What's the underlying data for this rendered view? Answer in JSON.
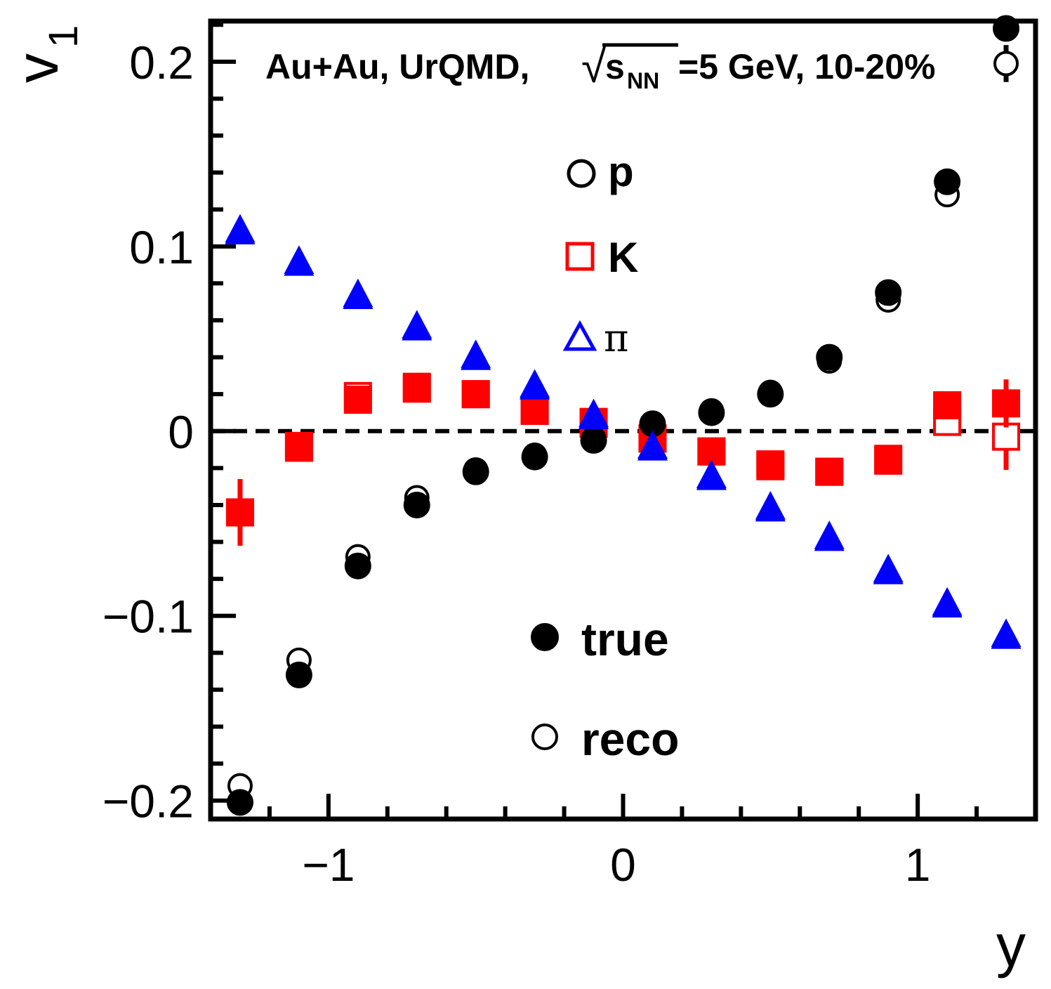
{
  "chart_data": {
    "type": "scatter",
    "annotation": {
      "prefix": "Au+Au, UrQMD, ",
      "sqrt_symbol": "√",
      "s_letter": "s",
      "subscript": "NN",
      "suffix": "=5 GeV, 10-20%"
    },
    "xlabel": "y",
    "ylabel": {
      "main": "v",
      "sub": "1"
    },
    "xlim": [
      -1.4,
      1.4
    ],
    "ylim": [
      -0.21,
      0.222
    ],
    "x_ticks": [
      {
        "value": -1,
        "label": "−1"
      },
      {
        "value": 0,
        "label": "0"
      },
      {
        "value": 1,
        "label": "1"
      }
    ],
    "y_ticks": [
      {
        "value": -0.2,
        "label": "−0.2"
      },
      {
        "value": -0.1,
        "label": "−0.1"
      },
      {
        "value": 0,
        "label": "0"
      },
      {
        "value": 0.1,
        "label": "0.1"
      },
      {
        "value": 0.2,
        "label": "0.2"
      }
    ],
    "zero_line": true,
    "legend_species": [
      {
        "label": "p",
        "marker": "circle",
        "color": "#000000"
      },
      {
        "label": "K",
        "marker": "square",
        "color": "#ff0000"
      },
      {
        "label": "π",
        "marker": "triangle",
        "color": "#0000ff"
      }
    ],
    "legend_type": [
      {
        "label": "true",
        "filled": true
      },
      {
        "label": "reco",
        "filled": false
      }
    ],
    "x": [
      -1.3,
      -1.1,
      -0.9,
      -0.7,
      -0.5,
      -0.3,
      -0.1,
      0.1,
      0.3,
      0.5,
      0.7,
      0.9,
      1.1,
      1.3
    ],
    "series": [
      {
        "name": "p true",
        "marker": "circle",
        "filled": true,
        "color": "#000000",
        "values": [
          -0.201,
          -0.132,
          -0.073,
          -0.04,
          -0.022,
          -0.014,
          -0.005,
          0.004,
          0.01,
          0.02,
          0.04,
          0.075,
          0.135,
          0.218
        ],
        "errors": [
          0,
          0,
          0,
          0,
          0,
          0,
          0,
          0,
          0,
          0,
          0,
          0,
          0,
          0
        ]
      },
      {
        "name": "p reco",
        "marker": "circle",
        "filled": false,
        "color": "#000000",
        "values": [
          -0.192,
          -0.124,
          -0.068,
          -0.036,
          -0.021,
          -0.013,
          -0.004,
          0.004,
          0.011,
          0.021,
          0.038,
          0.071,
          0.128,
          0.199
        ],
        "errors": [
          0.005,
          0,
          0,
          0,
          0,
          0,
          0,
          0,
          0,
          0,
          0,
          0,
          0,
          0.01
        ]
      },
      {
        "name": "K true",
        "marker": "square",
        "filled": true,
        "color": "#ff0000",
        "values": [
          -0.044,
          -0.009,
          0.017,
          0.023,
          0.02,
          0.011,
          0.004,
          -0.004,
          -0.011,
          -0.018,
          -0.022,
          -0.015,
          0.014,
          0.015
        ],
        "errors": [
          0.018,
          0,
          0,
          0,
          0,
          0,
          0,
          0,
          0,
          0,
          0,
          0,
          0,
          0.013
        ]
      },
      {
        "name": "K reco",
        "marker": "square",
        "filled": false,
        "color": "#ff0000",
        "values": [
          -0.044,
          -0.008,
          0.019,
          0.024,
          0.02,
          0.011,
          0.005,
          -0.004,
          -0.011,
          -0.019,
          -0.022,
          -0.016,
          0.005,
          -0.003
        ],
        "errors": [
          0.018,
          0,
          0,
          0,
          0,
          0,
          0,
          0,
          0,
          0,
          0,
          0,
          0.005,
          0.018
        ]
      },
      {
        "name": "pi true",
        "marker": "triangle",
        "filled": true,
        "color": "#0000ff",
        "values": [
          0.108,
          0.091,
          0.073,
          0.056,
          0.04,
          0.024,
          0.008,
          -0.009,
          -0.025,
          -0.042,
          -0.058,
          -0.076,
          -0.094,
          -0.111
        ],
        "errors": [
          0,
          0,
          0,
          0,
          0,
          0,
          0,
          0,
          0,
          0,
          0,
          0,
          0,
          0
        ]
      },
      {
        "name": "pi reco",
        "marker": "triangle",
        "filled": false,
        "color": "#0000ff",
        "values": [
          0.107,
          0.09,
          0.072,
          0.055,
          0.039,
          0.023,
          0.007,
          -0.01,
          -0.026,
          -0.043,
          -0.059,
          -0.077,
          -0.095,
          -0.112
        ],
        "errors": [
          0,
          0,
          0,
          0,
          0,
          0,
          0,
          0,
          0,
          0,
          0,
          0,
          0,
          0
        ]
      }
    ]
  }
}
